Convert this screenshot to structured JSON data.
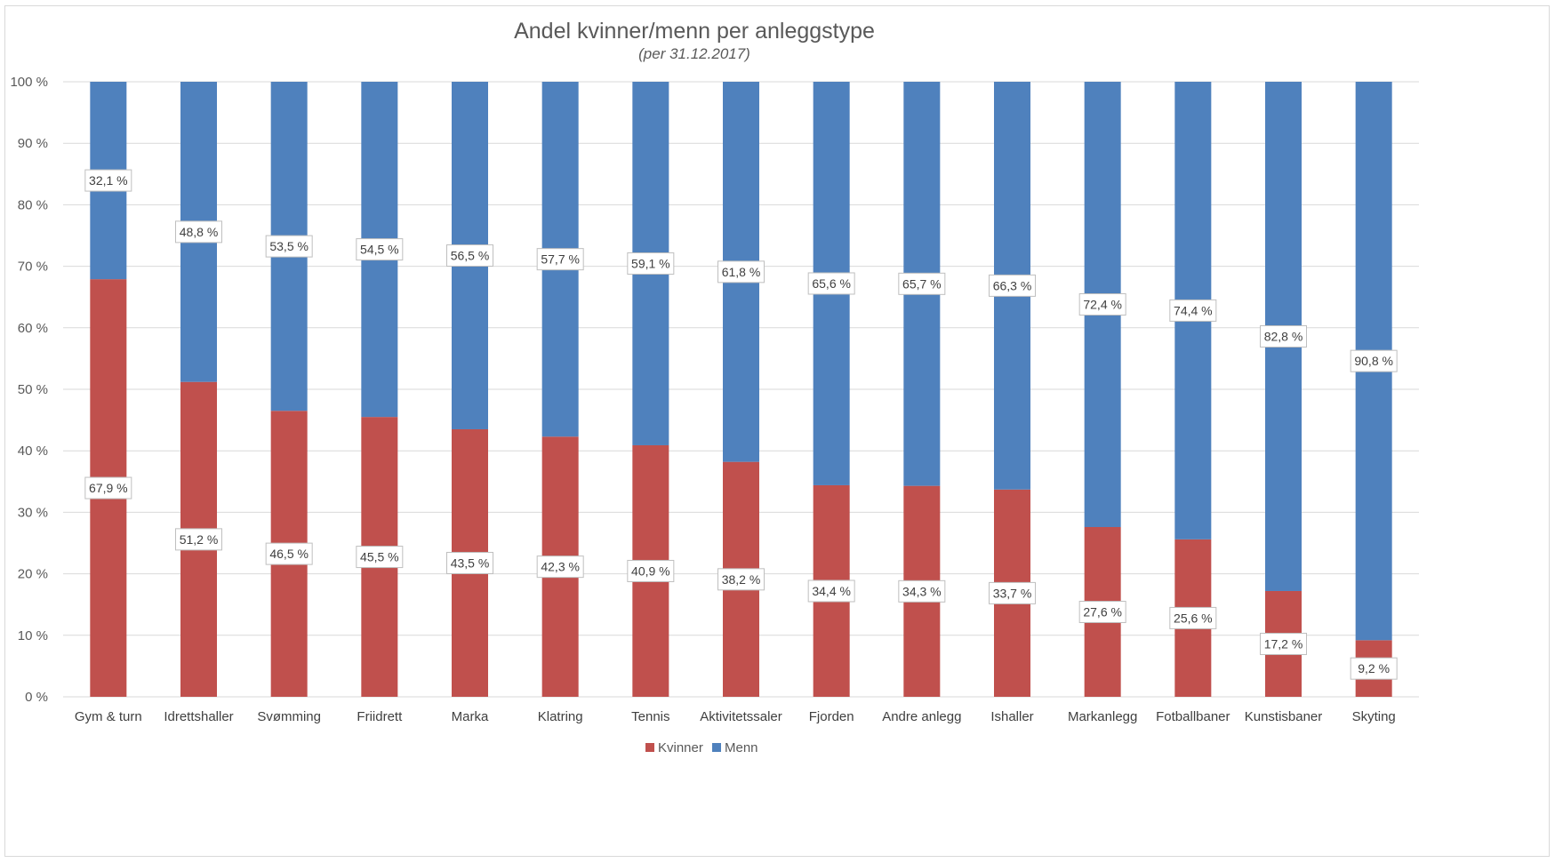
{
  "chart_data": {
    "type": "bar",
    "stacked": true,
    "title": "Andel kvinner/menn per anleggstype",
    "subtitle": "(per 31.12.2017)",
    "categories": [
      "Gym & turn",
      "Idrettshaller",
      "Svømming",
      "Friidrett",
      "Marka",
      "Klatring",
      "Tennis",
      "Aktivitetssaler",
      "Fjorden",
      "Andre anlegg",
      "Ishaller",
      "Markanlegg",
      "Fotballbaner",
      "Kunstisbaner",
      "Skyting"
    ],
    "series": [
      {
        "name": "Kvinner",
        "color": "#c0504d",
        "values": [
          67.9,
          51.2,
          46.5,
          45.5,
          43.5,
          42.3,
          40.9,
          38.2,
          34.4,
          34.3,
          33.7,
          27.6,
          25.6,
          17.2,
          9.2
        ],
        "labels": [
          "67,9 %",
          "51,2 %",
          "46,5 %",
          "45,5 %",
          "43,5 %",
          "42,3 %",
          "40,9 %",
          "38,2 %",
          "34,4 %",
          "34,3 %",
          "33,7 %",
          "27,6 %",
          "25,6 %",
          "17,2 %",
          "9,2 %"
        ]
      },
      {
        "name": "Menn",
        "color": "#4f81bd",
        "values": [
          32.1,
          48.8,
          53.5,
          54.5,
          56.5,
          57.7,
          59.1,
          61.8,
          65.6,
          65.7,
          66.3,
          72.4,
          74.4,
          82.8,
          90.8
        ],
        "labels": [
          "32,1 %",
          "48,8 %",
          "53,5 %",
          "54,5 %",
          "56,5 %",
          "57,7 %",
          "59,1 %",
          "61,8 %",
          "65,6 %",
          "65,7 %",
          "66,3 %",
          "72,4 %",
          "74,4 %",
          "82,8 %",
          "90,8 %"
        ]
      }
    ],
    "ylim": [
      0,
      100
    ],
    "yticks": [
      0,
      10,
      20,
      30,
      40,
      50,
      60,
      70,
      80,
      90,
      100
    ],
    "ytick_labels": [
      "0 %",
      "10 %",
      "20 %",
      "30 %",
      "40 %",
      "50 %",
      "60 %",
      "70 %",
      "80 %",
      "90 %",
      "100 %"
    ],
    "grid": true,
    "legend": "bottom-center"
  }
}
